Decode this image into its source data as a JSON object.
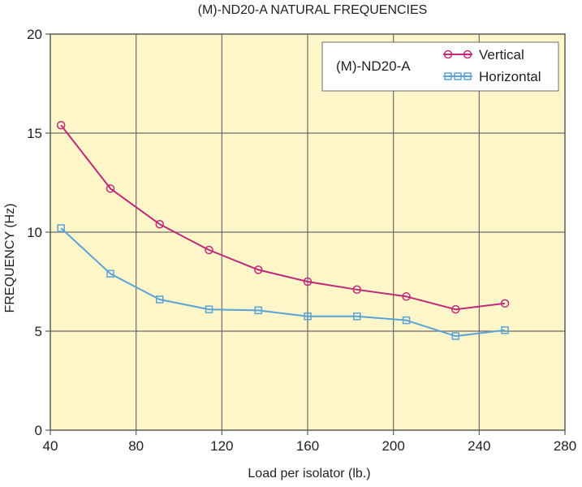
{
  "chart_data": {
    "type": "line",
    "title": "(M)-ND20-A NATURAL FREQUENCIES",
    "xlabel": "Load per isolator (lb.)",
    "ylabel": "FREQUENCY (Hz)",
    "xlim": [
      40,
      280
    ],
    "ylim": [
      0,
      20
    ],
    "xticks": [
      40,
      80,
      120,
      160,
      200,
      240,
      280
    ],
    "yticks": [
      0,
      5,
      10,
      15,
      20
    ],
    "grid": true,
    "background": "#fdf6c8",
    "legend": {
      "title": "(M)-ND20-A",
      "position": "top-right"
    },
    "series": [
      {
        "name": "Vertical",
        "color": "#c0287a",
        "marker": "circle",
        "x": [
          45,
          68,
          91,
          114,
          137,
          160,
          183,
          206,
          229,
          252
        ],
        "y": [
          15.4,
          12.2,
          10.4,
          9.1,
          8.1,
          7.5,
          7.1,
          6.75,
          6.1,
          6.4
        ]
      },
      {
        "name": "Horizontal",
        "color": "#5aa2d8",
        "marker": "square",
        "x": [
          45,
          68,
          91,
          114,
          137,
          160,
          183,
          206,
          229,
          252
        ],
        "y": [
          10.2,
          7.9,
          6.6,
          6.1,
          6.05,
          5.75,
          5.75,
          5.55,
          4.75,
          5.05
        ]
      }
    ]
  }
}
